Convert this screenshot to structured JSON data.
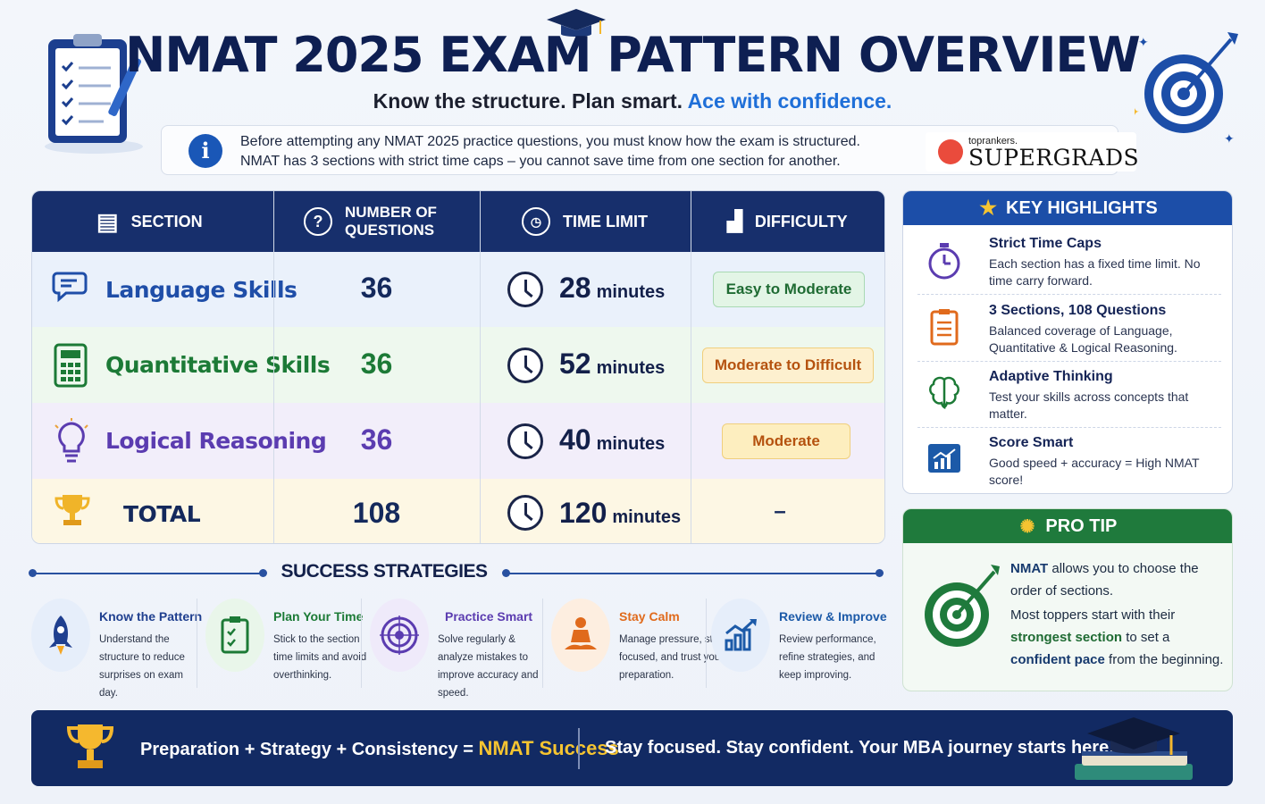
{
  "header": {
    "title": "NMAT 2025 EXAM PATTERN OVERVIEW",
    "subtitle_main": "Know the structure. Plan smart.",
    "subtitle_accent": "Ace with confidence."
  },
  "info": {
    "line1": "Before attempting any NMAT 2025 practice questions, you must know how the exam is structured.",
    "line2": "NMAT has 3 sections with strict time caps – you cannot save time from one section for another."
  },
  "brand": {
    "small": "toprankers.",
    "big": "SUPERGRADS"
  },
  "table": {
    "headers": {
      "section": "SECTION",
      "questions_line1": "NUMBER OF",
      "questions_line2": "QUESTIONS",
      "time": "TIME LIMIT",
      "difficulty": "DIFFICULTY"
    },
    "rows": [
      {
        "name": "Language Skills",
        "questions": "36",
        "time": "28",
        "unit": "minutes",
        "difficulty": "Easy to Moderate",
        "color": "#1f4ea8",
        "bg": "#eaf1fb"
      },
      {
        "name": "Quantitative Skills",
        "questions": "36",
        "time": "52",
        "unit": "minutes",
        "difficulty": "Moderate to Difficult",
        "color": "#1c7a36",
        "bg": "#eef8ee"
      },
      {
        "name": "Logical Reasoning",
        "questions": "36",
        "time": "40",
        "unit": "minutes",
        "difficulty": "Moderate",
        "color": "#5b3cb0",
        "bg": "#f2eefa"
      }
    ],
    "total": {
      "label": "TOTAL",
      "questions": "108",
      "time": "120",
      "unit": "minutes",
      "difficulty": "–"
    }
  },
  "highlights": {
    "title": "KEY HIGHLIGHTS",
    "items": [
      {
        "title": "Strict Time Caps",
        "desc": "Each section has a fixed time limit. No time carry forward."
      },
      {
        "title": "3 Sections, 108 Questions",
        "desc": "Balanced coverage of Language, Quantitative & Logical Reasoning."
      },
      {
        "title": "Adaptive Thinking",
        "desc": "Test your skills across concepts that matter."
      },
      {
        "title": "Score Smart",
        "desc": "Good speed + accuracy = High NMAT score!"
      }
    ]
  },
  "pro_tip": {
    "title": "PRO TIP",
    "p1_bold": "NMAT",
    "p1_rest": " allows you to choose the order of sections.",
    "p2_start": "Most toppers start with their ",
    "p2_green": "strongest section",
    "p2_mid": " to set a ",
    "p2_bold": "confident pace",
    "p2_end": " from the beginning."
  },
  "strategies": {
    "title": "SUCCESS STRATEGIES",
    "items": [
      {
        "title": "Know the Pattern",
        "desc": "Understand the structure to reduce surprises on exam day.",
        "color": "#1f3f8f"
      },
      {
        "title": "Plan Your Time",
        "desc": "Stick to the section time limits and avoid overthinking.",
        "color": "#1c7a36"
      },
      {
        "title": "Practice Smart",
        "desc": "Solve regularly & analyze mistakes to improve accuracy and speed.",
        "color": "#5b3cb0"
      },
      {
        "title": "Stay Calm",
        "desc": "Manage pressure, stay focused, and trust your preparation.",
        "color": "#e06a1c"
      },
      {
        "title": "Review & Improve",
        "desc": "Review performance, refine strategies, and keep improving.",
        "color": "#1c5aa8"
      }
    ]
  },
  "footer": {
    "formula": "Preparation + Strategy + Consistency =",
    "success": "NMAT Success",
    "motto": "Stay focused. Stay confident. Your MBA journey starts here!"
  }
}
